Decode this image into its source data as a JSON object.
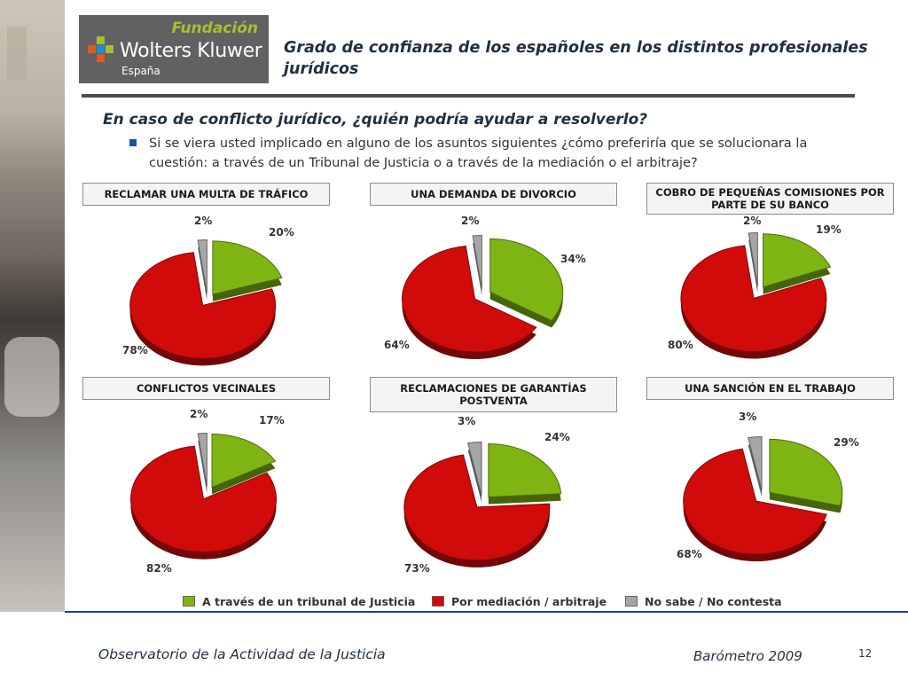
{
  "header": {
    "logo_fundacion": "Fundación",
    "logo_brand": "Wolters Kluwer",
    "logo_country": "España",
    "title": "Grado de confianza de los españoles en los distintos profesionales jurídicos"
  },
  "question": "En caso de conflicto jurídico, ¿quién podría ayudar a resolverlo?",
  "bullet": "Si se viera usted implicado en alguno de los asuntos siguientes ¿cómo preferiría que se solucionara la cuestión: a través de un Tribunal de Justicia o a través de la mediación o el arbitraje?",
  "colors": {
    "tribunal": "#7fb512",
    "mediacion": "#d10a0a",
    "nosabe": "#a6a6a6",
    "accent": "#1d4fa6"
  },
  "chart_data": [
    {
      "type": "pie",
      "title": "RECLAMAR UNA MULTA DE TRÁFICO",
      "slices": [
        {
          "label": "A través de un tribunal de Justicia",
          "value": 20
        },
        {
          "label": "Por mediación / arbitraje",
          "value": 78
        },
        {
          "label": "No sabe / No contesta",
          "value": 2
        }
      ],
      "value_labels": [
        "20%",
        "78%",
        "2%"
      ]
    },
    {
      "type": "pie",
      "title": "UNA DEMANDA DE DIVORCIO",
      "slices": [
        {
          "label": "A través de un tribunal de Justicia",
          "value": 34
        },
        {
          "label": "Por mediación / arbitraje",
          "value": 64
        },
        {
          "label": "No sabe / No contesta",
          "value": 2
        }
      ],
      "value_labels": [
        "34%",
        "64%",
        "2%"
      ]
    },
    {
      "type": "pie",
      "title": "COBRO DE PEQUEÑAS COMISIONES POR PARTE DE SU BANCO",
      "slices": [
        {
          "label": "A través de un tribunal de Justicia",
          "value": 19
        },
        {
          "label": "Por mediación / arbitraje",
          "value": 80
        },
        {
          "label": "No sabe / No contesta",
          "value": 2
        }
      ],
      "value_labels": [
        "19%",
        "80%",
        "2%"
      ]
    },
    {
      "type": "pie",
      "title": "CONFLICTOS VECINALES",
      "slices": [
        {
          "label": "A través de un tribunal de Justicia",
          "value": 17
        },
        {
          "label": "Por mediación / arbitraje",
          "value": 82
        },
        {
          "label": "No sabe / No contesta",
          "value": 2
        }
      ],
      "value_labels": [
        "17%",
        "82%",
        "2%"
      ]
    },
    {
      "type": "pie",
      "title": "RECLAMACIONES DE GARANTÍAS POSTVENTA",
      "slices": [
        {
          "label": "A través de un tribunal de Justicia",
          "value": 24
        },
        {
          "label": "Por mediación / arbitraje",
          "value": 73
        },
        {
          "label": "No sabe / No contesta",
          "value": 3
        }
      ],
      "value_labels": [
        "24%",
        "73%",
        "3%"
      ]
    },
    {
      "type": "pie",
      "title": "UNA SANCIÓN EN EL TRABAJO",
      "slices": [
        {
          "label": "A través de un tribunal de Justicia",
          "value": 29
        },
        {
          "label": "Por mediación / arbitraje",
          "value": 68
        },
        {
          "label": "No sabe / No contesta",
          "value": 3
        }
      ],
      "value_labels": [
        "29%",
        "68%",
        "3%"
      ]
    }
  ],
  "legend": {
    "items": [
      {
        "label": "A través de un tribunal de Justicia"
      },
      {
        "label": "Por mediación / arbitraje"
      },
      {
        "label": "No sabe / No contesta"
      }
    ]
  },
  "footer": {
    "left": "Observatorio de la Actividad de la Justicia",
    "right": "Barómetro 2009",
    "page": "12"
  }
}
